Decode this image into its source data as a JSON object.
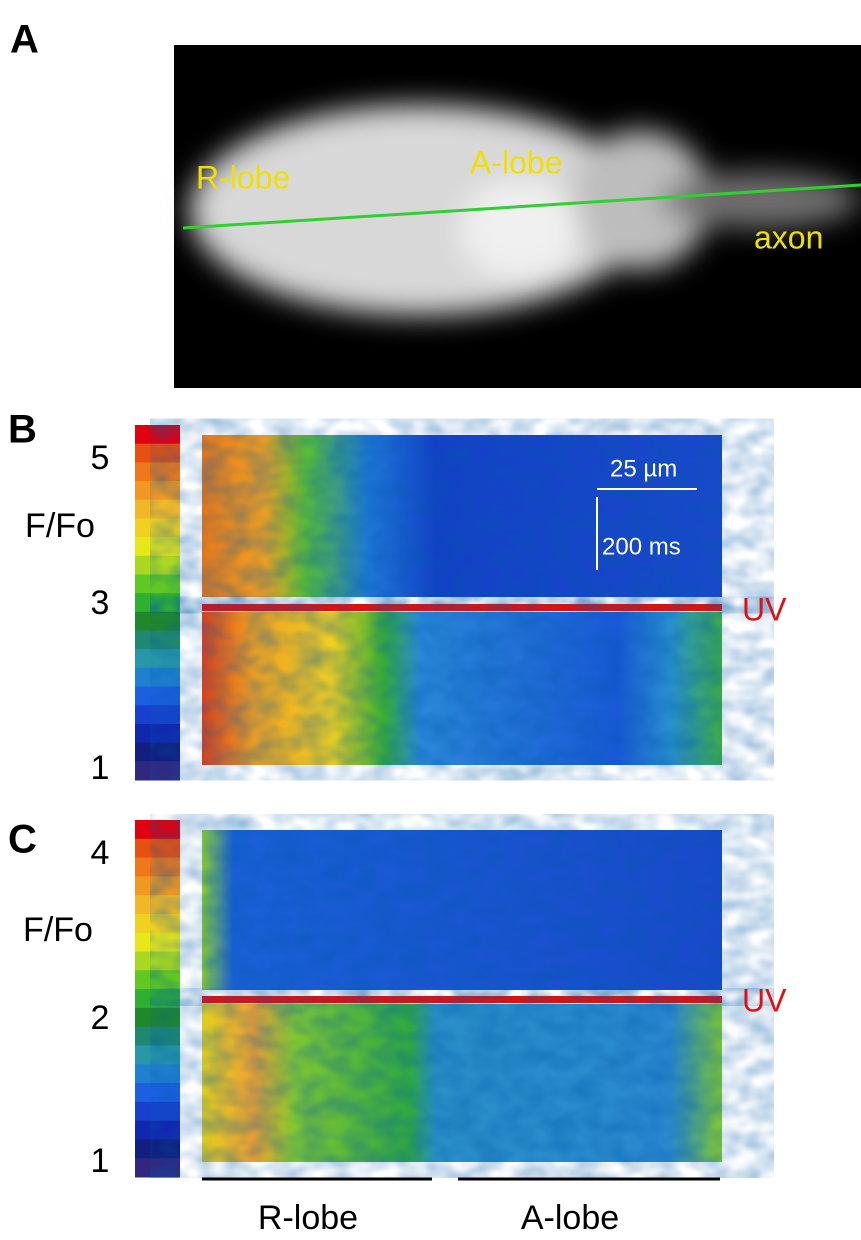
{
  "panels": [
    {
      "label": "A",
      "annotations": [
        "R-lobe",
        "A-lobe",
        "axon"
      ]
    },
    {
      "label": "B",
      "colorbar": {
        "title": "F/Fo",
        "ticks": [
          "5",
          "3",
          "1"
        ]
      },
      "scale_bar": {
        "x": "25 µm",
        "y": "200 ms"
      },
      "marker": "UV"
    },
    {
      "label": "C",
      "colorbar": {
        "title": "F/Fo",
        "ticks": [
          "4",
          "2",
          "1"
        ]
      },
      "marker": "UV"
    }
  ],
  "x_labels": [
    "R-lobe",
    "A-lobe"
  ]
}
